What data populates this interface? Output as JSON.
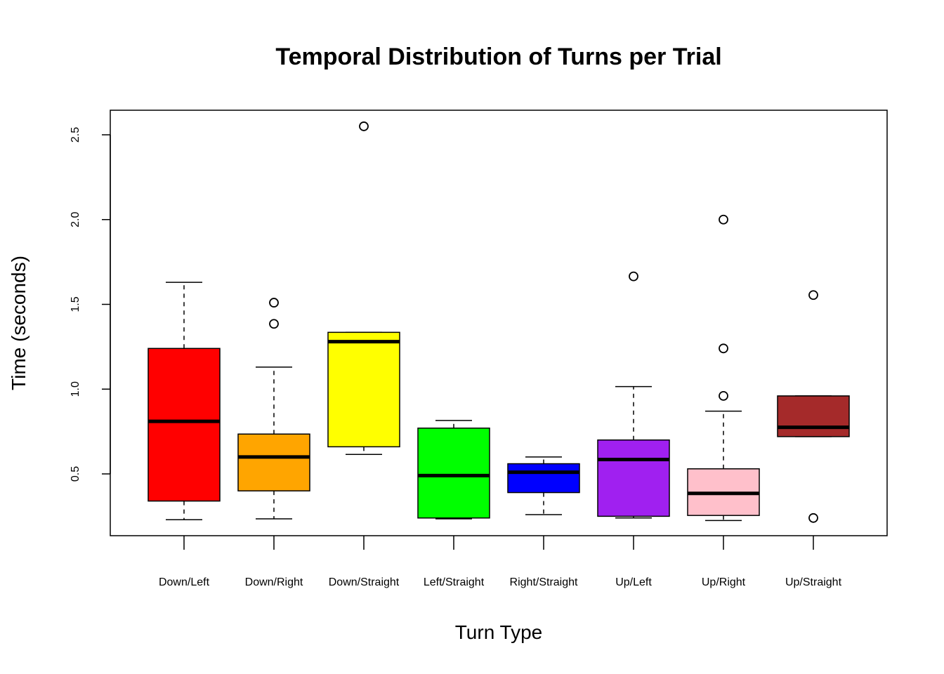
{
  "chart_data": {
    "type": "boxplot",
    "title": "Temporal Distribution of Turns per Trial",
    "xlabel": "Turn Type",
    "ylabel": "Time (seconds)",
    "ylim": [
      0.18,
      2.7
    ],
    "yticks": [
      "0.5",
      "1.0",
      "1.5",
      "2.0",
      "2.5"
    ],
    "ytick_values": [
      0.5,
      1.0,
      1.5,
      2.0,
      2.5
    ],
    "grid": false,
    "categories": [
      "Down/Left",
      "Down/Right",
      "Down/Straight",
      "Left/Straight",
      "Right/Straight",
      "Up/Left",
      "Up/Right",
      "Up/Straight"
    ],
    "boxes": [
      {
        "name": "Down/Left",
        "color": "#FF0000",
        "whisker_low": 0.23,
        "q1": 0.34,
        "median": 0.81,
        "q3": 1.24,
        "whisker_high": 1.63,
        "outliers": []
      },
      {
        "name": "Down/Right",
        "color": "#FFA500",
        "whisker_low": 0.235,
        "q1": 0.4,
        "median": 0.6,
        "q3": 0.735,
        "whisker_high": 1.13,
        "outliers": [
          1.385,
          1.51
        ]
      },
      {
        "name": "Down/Straight",
        "color": "#FFFF00",
        "whisker_low": 0.615,
        "q1": 0.66,
        "median": 1.28,
        "q3": 1.335,
        "whisker_high": 1.335,
        "outliers": [
          2.55
        ]
      },
      {
        "name": "Left/Straight",
        "color": "#00FF00",
        "whisker_low": 0.235,
        "q1": 0.24,
        "median": 0.49,
        "q3": 0.77,
        "whisker_high": 0.815,
        "outliers": []
      },
      {
        "name": "Right/Straight",
        "color": "#0000FF",
        "whisker_low": 0.26,
        "q1": 0.39,
        "median": 0.51,
        "q3": 0.56,
        "whisker_high": 0.6,
        "outliers": []
      },
      {
        "name": "Up/Left",
        "color": "#A020F0",
        "whisker_low": 0.24,
        "q1": 0.25,
        "median": 0.585,
        "q3": 0.7,
        "whisker_high": 1.015,
        "outliers": [
          1.665
        ]
      },
      {
        "name": "Up/Right",
        "color": "#FFC0CB",
        "whisker_low": 0.225,
        "q1": 0.255,
        "median": 0.385,
        "q3": 0.53,
        "whisker_high": 0.87,
        "outliers": [
          0.96,
          1.24,
          2.0
        ]
      },
      {
        "name": "Up/Straight",
        "color": "#A52A2A",
        "whisker_low": 0.72,
        "q1": 0.72,
        "median": 0.775,
        "q3": 0.96,
        "whisker_high": 0.96,
        "outliers": [
          0.24,
          1.555
        ]
      }
    ]
  }
}
